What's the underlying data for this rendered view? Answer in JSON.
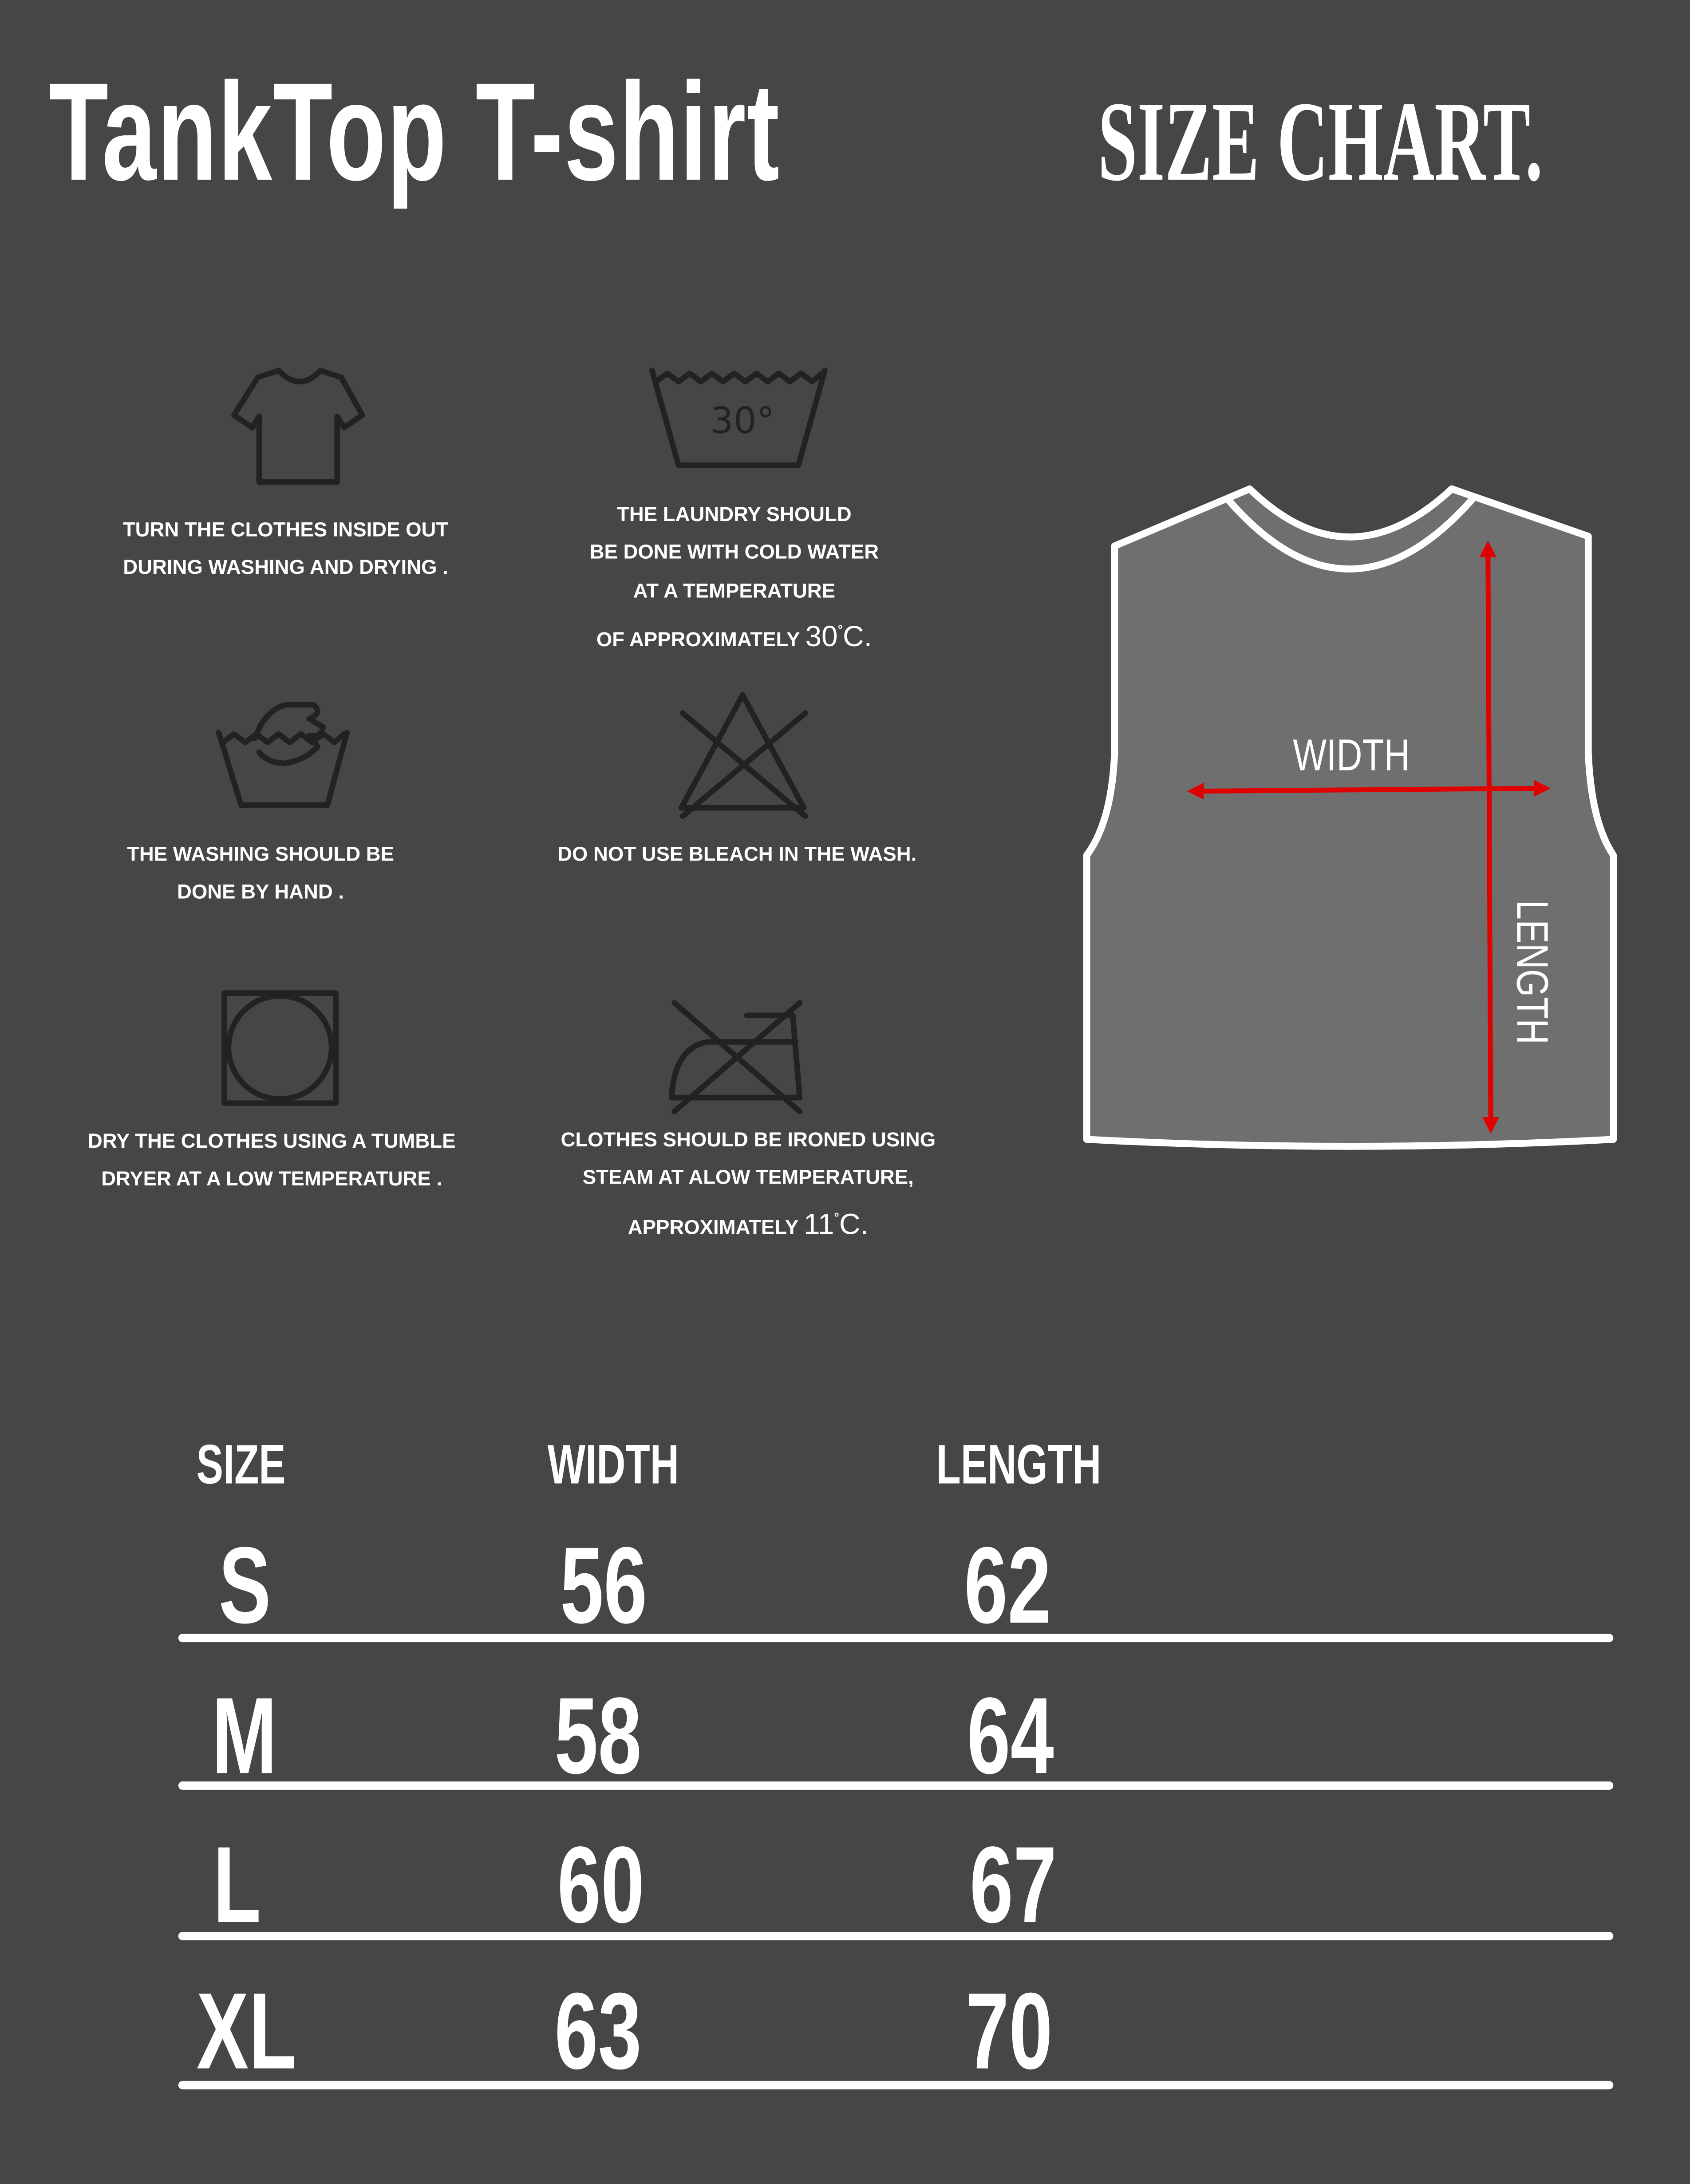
{
  "header": {
    "title": "TankTop T-shirt",
    "subtitle": "SIZE CHART."
  },
  "care": [
    {
      "icon": "inside-out-shirt-icon",
      "lines": [
        "TURN THE CLOTHES INSIDE OUT",
        "DURING WASHING AND DRYING ."
      ]
    },
    {
      "icon": "wash-30-degrees-icon",
      "icon_text": "30°",
      "lines": [
        "THE LAUNDRY SHOULD",
        "BE DONE WITH COLD WATER",
        "AT A TEMPERATURE",
        "OF APPROXIMATELY"
      ],
      "temp": "30",
      "unit": "C."
    },
    {
      "icon": "hand-wash-icon",
      "lines": [
        "THE WASHING SHOULD BE",
        "DONE BY HAND ."
      ]
    },
    {
      "icon": "do-not-bleach-icon",
      "lines": [
        "DO NOT USE BLEACH IN THE WASH."
      ]
    },
    {
      "icon": "tumble-dry-icon",
      "lines": [
        "DRY THE CLOTHES USING A TUMBLE",
        "DRYER AT A LOW TEMPERATURE ."
      ]
    },
    {
      "icon": "do-not-iron-icon",
      "lines": [
        "CLOTHES SHOULD BE IRONED USING",
        "STEAM AT ALOW TEMPERATURE,",
        "APPROXIMATELY"
      ],
      "temp": "11",
      "unit": "C."
    }
  ],
  "diagram": {
    "width_label": "WIDTH",
    "length_label": "LENGTH",
    "arrow_color": "#e00000",
    "fill_color": "#6f6f6f"
  },
  "table": {
    "headers": [
      "SIZE",
      "WIDTH",
      "LENGTH"
    ],
    "rows": [
      {
        "size": "S",
        "width": "56",
        "length": "62"
      },
      {
        "size": "M",
        "width": "58",
        "length": "64"
      },
      {
        "size": "L",
        "width": "60",
        "length": "67"
      },
      {
        "size": "XL",
        "width": "63",
        "length": "70"
      }
    ]
  }
}
